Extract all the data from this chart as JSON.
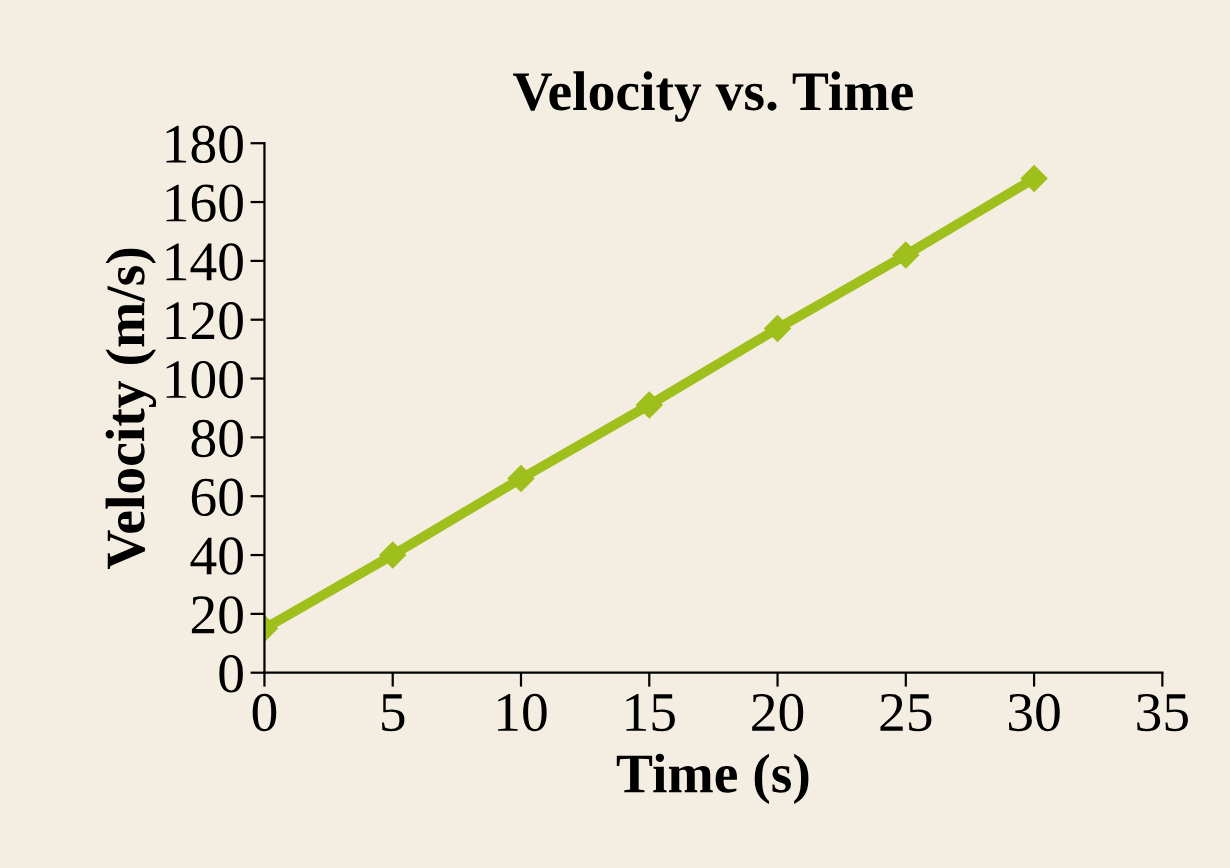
{
  "chart_data": {
    "type": "line",
    "title": "Velocity vs. Time",
    "xlabel": "Time (s)",
    "ylabel": "Velocity (m/s)",
    "x": [
      0,
      5,
      10,
      15,
      20,
      25,
      30
    ],
    "series": [
      {
        "color": "#9fbf1c",
        "values": [
          15,
          40,
          66,
          91,
          117,
          142,
          168
        ]
      }
    ],
    "xlim": [
      0,
      35
    ],
    "xticks": [
      0,
      5,
      10,
      15,
      20,
      25,
      30,
      35
    ],
    "ylim": [
      0,
      180
    ],
    "yticks": [
      0,
      20,
      40,
      60,
      80,
      100,
      120,
      140,
      160,
      180
    ],
    "grid": false,
    "marker": "diamond",
    "line_style": "solid"
  }
}
